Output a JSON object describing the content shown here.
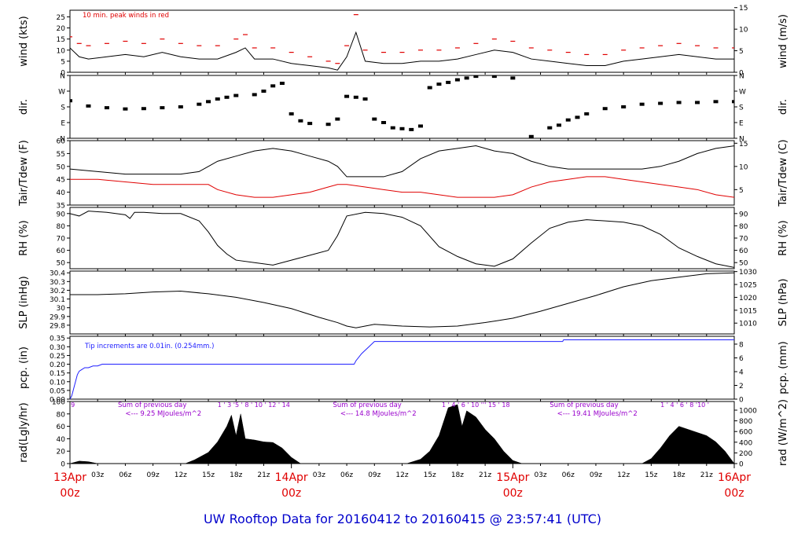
{
  "title": "UW Rooftop Data for 20160412  to  20160415 @ 23:57:41  (UTC)",
  "colors": {
    "red": "#e00000",
    "blue": "#2020ff",
    "purple": "#9900cc",
    "navy": "#0000cc",
    "black": "#000000"
  },
  "time_axis": {
    "range_hours": [
      0,
      72
    ],
    "minor_labels": [
      {
        "h": 3,
        "label": "03z"
      },
      {
        "h": 6,
        "label": "06z"
      },
      {
        "h": 9,
        "label": "09z"
      },
      {
        "h": 12,
        "label": "12z"
      },
      {
        "h": 15,
        "label": "15z"
      },
      {
        "h": 18,
        "label": "18z"
      },
      {
        "h": 21,
        "label": "21z"
      },
      {
        "h": 27,
        "label": "03z"
      },
      {
        "h": 30,
        "label": "06z"
      },
      {
        "h": 33,
        "label": "09z"
      },
      {
        "h": 36,
        "label": "12z"
      },
      {
        "h": 39,
        "label": "15z"
      },
      {
        "h": 42,
        "label": "18z"
      },
      {
        "h": 45,
        "label": "21z"
      },
      {
        "h": 51,
        "label": "03z"
      },
      {
        "h": 54,
        "label": "06z"
      },
      {
        "h": 57,
        "label": "09z"
      },
      {
        "h": 60,
        "label": "12z"
      },
      {
        "h": 63,
        "label": "15z"
      },
      {
        "h": 66,
        "label": "18z"
      },
      {
        "h": 69,
        "label": "21z"
      }
    ],
    "day_labels": [
      {
        "h": 0,
        "day": "13Apr",
        "hour": "00z"
      },
      {
        "h": 24,
        "day": "14Apr",
        "hour": "00z"
      },
      {
        "h": 48,
        "day": "15Apr",
        "hour": "00z"
      },
      {
        "h": 72,
        "day": "16Apr",
        "hour": "00z"
      }
    ]
  },
  "chart_data": [
    {
      "type": "line",
      "ylabel": "wind (kts)",
      "ylabel_right": "wind (m/s)",
      "ylim": [
        0,
        28
      ],
      "yticks": [
        0,
        5,
        10,
        15,
        20,
        25
      ],
      "right_ylim": [
        0,
        14.4
      ],
      "right_ticks": [
        0,
        5,
        10,
        15
      ],
      "annotation": "10 min. peak winds in red",
      "series": [
        {
          "color": "black",
          "x": [
            0,
            1,
            2,
            4,
            6,
            8,
            10,
            12,
            14,
            16,
            18,
            19,
            20,
            22,
            24,
            26,
            28,
            29,
            30,
            31,
            32,
            34,
            36,
            38,
            40,
            42,
            44,
            46,
            48,
            50,
            52,
            54,
            56,
            58,
            60,
            62,
            64,
            66,
            68,
            70,
            72
          ],
          "y": [
            11,
            7,
            6,
            7,
            8,
            7,
            9,
            7,
            6,
            6,
            9,
            11,
            6,
            6,
            4,
            3,
            2,
            1,
            7,
            18,
            5,
            4,
            4,
            5,
            5,
            6,
            8,
            10,
            9,
            6,
            5,
            4,
            3,
            3,
            5,
            6,
            7,
            8,
            7,
            6,
            6
          ]
        },
        {
          "color": "red",
          "x": [
            0,
            1,
            2,
            4,
            6,
            8,
            10,
            12,
            14,
            16,
            18,
            19,
            20,
            22,
            24,
            26,
            28,
            29,
            30,
            31,
            32,
            34,
            36,
            38,
            40,
            42,
            44,
            46,
            48,
            50,
            52,
            54,
            56,
            58,
            60,
            62,
            64,
            66,
            68,
            70,
            72
          ],
          "y": [
            16,
            13,
            12,
            13,
            14,
            13,
            15,
            13,
            12,
            12,
            15,
            17,
            11,
            11,
            9,
            7,
            5,
            4,
            12,
            26,
            10,
            9,
            9,
            10,
            10,
            11,
            13,
            15,
            14,
            11,
            10,
            9,
            8,
            8,
            10,
            11,
            12,
            13,
            12,
            11,
            11
          ]
        }
      ]
    },
    {
      "type": "scatter",
      "ylabel": "dir.",
      "ylabel_right": "dir.",
      "ylim": [
        0,
        360
      ],
      "yticks": [
        0,
        90,
        180,
        270,
        360
      ],
      "ytick_labels": [
        "N",
        "E",
        "S",
        "W",
        "N"
      ],
      "series": [
        {
          "color": "black",
          "x": [
            0,
            2,
            4,
            6,
            8,
            10,
            12,
            14,
            15,
            16,
            17,
            18,
            20,
            21,
            22,
            23,
            24,
            25,
            26,
            28,
            29,
            30,
            31,
            32,
            33,
            34,
            35,
            36,
            37,
            38,
            39,
            40,
            41,
            42,
            43,
            44,
            46,
            48,
            50,
            52,
            53,
            54,
            55,
            56,
            58,
            60,
            62,
            64,
            66,
            68,
            70,
            72
          ],
          "y": [
            215,
            185,
            175,
            168,
            170,
            175,
            180,
            195,
            210,
            225,
            235,
            245,
            250,
            270,
            300,
            315,
            140,
            100,
            85,
            80,
            110,
            240,
            235,
            225,
            110,
            90,
            60,
            55,
            50,
            70,
            290,
            310,
            320,
            335,
            345,
            355,
            355,
            345,
            10,
            60,
            75,
            105,
            120,
            140,
            170,
            180,
            195,
            200,
            205,
            205,
            210,
            210
          ]
        }
      ]
    },
    {
      "type": "line",
      "ylabel": "Tair/Tdew (F)",
      "ylabel_right": "Tair/Tdew (C)",
      "ylim": [
        35,
        60
      ],
      "yticks": [
        35,
        40,
        45,
        50,
        55,
        60
      ],
      "right_ylim": [
        1.67,
        15.56
      ],
      "right_ticks": [
        5,
        10,
        15
      ],
      "series": [
        {
          "color": "black",
          "x": [
            0,
            3,
            6,
            9,
            12,
            14,
            15,
            16,
            18,
            20,
            22,
            24,
            26,
            28,
            29,
            30,
            32,
            34,
            36,
            38,
            40,
            42,
            44,
            46,
            48,
            50,
            52,
            54,
            56,
            58,
            60,
            62,
            64,
            66,
            68,
            70,
            72
          ],
          "y": [
            49,
            48,
            47,
            47,
            47,
            48,
            50,
            52,
            54,
            56,
            57,
            56,
            54,
            52,
            50,
            46,
            46,
            46,
            48,
            53,
            56,
            57,
            58,
            56,
            55,
            52,
            50,
            49,
            49,
            49,
            49,
            49,
            50,
            52,
            55,
            57,
            58
          ]
        },
        {
          "color": "red",
          "x": [
            0,
            3,
            6,
            9,
            12,
            14,
            15,
            16,
            18,
            20,
            22,
            24,
            26,
            28,
            29,
            30,
            32,
            34,
            36,
            38,
            40,
            42,
            44,
            46,
            48,
            50,
            52,
            54,
            56,
            58,
            60,
            62,
            64,
            66,
            68,
            70,
            72
          ],
          "y": [
            45,
            45,
            44,
            43,
            43,
            43,
            43,
            41,
            39,
            38,
            38,
            39,
            40,
            42,
            43,
            43,
            42,
            41,
            40,
            40,
            39,
            38,
            38,
            38,
            39,
            42,
            44,
            45,
            46,
            46,
            45,
            44,
            43,
            42,
            41,
            39,
            38
          ]
        }
      ]
    },
    {
      "type": "line",
      "ylabel": "RH (%)",
      "ylabel_right": "RH (%)",
      "ylim": [
        45,
        95
      ],
      "yticks": [
        50,
        60,
        70,
        80,
        90
      ],
      "series": [
        {
          "color": "black",
          "x": [
            0,
            1,
            2,
            4,
            6,
            6.5,
            7,
            8,
            10,
            12,
            14,
            15,
            16,
            17,
            18,
            20,
            22,
            24,
            26,
            28,
            29,
            30,
            32,
            34,
            36,
            38,
            40,
            42,
            44,
            46,
            48,
            50,
            52,
            54,
            56,
            58,
            60,
            62,
            64,
            66,
            68,
            70,
            72
          ],
          "y": [
            90,
            88,
            92,
            91,
            89,
            86,
            91,
            91,
            90,
            90,
            84,
            75,
            64,
            57,
            52,
            50,
            48,
            52,
            56,
            60,
            72,
            88,
            91,
            90,
            87,
            80,
            63,
            55,
            49,
            47,
            53,
            66,
            78,
            83,
            85,
            84,
            83,
            80,
            73,
            62,
            55,
            49,
            46
          ]
        }
      ]
    },
    {
      "type": "line",
      "ylabel": "SLP (inHg)",
      "ylabel_right": "SLP (hPa)",
      "ylim": [
        29.7,
        30.42
      ],
      "yticks": [
        29.8,
        29.9,
        30.0,
        30.1,
        30.2,
        30.3,
        30.4
      ],
      "right_ylim": [
        1005.8,
        1030.2
      ],
      "right_ticks": [
        1010,
        1015,
        1020,
        1025,
        1030
      ],
      "series": [
        {
          "color": "black",
          "x": [
            0,
            3,
            6,
            9,
            12,
            15,
            18,
            21,
            24,
            27,
            29,
            30,
            31,
            33,
            36,
            39,
            42,
            45,
            48,
            51,
            54,
            57,
            60,
            63,
            66,
            69,
            72
          ],
          "y": [
            30.15,
            30.15,
            30.16,
            30.18,
            30.19,
            30.16,
            30.12,
            30.06,
            29.99,
            29.89,
            29.83,
            29.79,
            29.77,
            29.81,
            29.79,
            29.78,
            29.79,
            29.83,
            29.88,
            29.96,
            30.05,
            30.14,
            30.24,
            30.31,
            30.35,
            30.39,
            30.4
          ]
        }
      ]
    },
    {
      "type": "line",
      "ylabel": "pcp. (in)",
      "ylabel_right": "pcp. (mm)",
      "ylim": [
        0,
        0.36
      ],
      "yticks": [
        0,
        0.05,
        0.1,
        0.15,
        0.2,
        0.25,
        0.3,
        0.35
      ],
      "ytick_labels": [
        "0.00",
        "0.05",
        "0.10",
        "0.15",
        "0.20",
        "0.25",
        "0.30",
        "0.35"
      ],
      "right_ylim": [
        0,
        9.14
      ],
      "right_ticks": [
        0,
        2,
        4,
        6,
        8
      ],
      "annotation": "Tip increments are 0.01in. (0.254mm.)",
      "series": [
        {
          "color": "blue",
          "x": [
            0,
            0.2,
            0.4,
            0.6,
            0.8,
            1.0,
            1.3,
            1.6,
            2.0,
            2.5,
            3.0,
            3.5,
            4.0,
            30.8,
            31.0,
            31.3,
            31.6,
            32.0,
            32.4,
            32.8,
            33.0,
            53.4,
            53.5,
            72
          ],
          "y": [
            0,
            0.02,
            0.06,
            0.1,
            0.14,
            0.16,
            0.17,
            0.18,
            0.18,
            0.19,
            0.19,
            0.2,
            0.2,
            0.2,
            0.22,
            0.24,
            0.26,
            0.28,
            0.3,
            0.32,
            0.33,
            0.33,
            0.34,
            0.34
          ]
        }
      ]
    },
    {
      "type": "area",
      "ylabel": "rad(Lgly/hr)",
      "ylabel_right": "rad (W/m^2)",
      "ylim": [
        0,
        100
      ],
      "yticks": [
        0,
        20,
        40,
        60,
        80,
        100
      ],
      "right_ylim": [
        0,
        1162
      ],
      "right_ticks": [
        0,
        200,
        400,
        600,
        800,
        1000
      ],
      "series": [
        {
          "color": "black",
          "x": [
            0,
            1,
            2,
            3,
            12.5,
            13.5,
            15,
            16,
            17,
            17.5,
            18,
            18.5,
            19,
            20,
            21,
            22,
            23,
            24,
            25,
            36.5,
            38,
            39,
            40,
            41,
            42,
            42.5,
            43,
            44,
            45,
            46,
            47,
            48,
            49,
            62,
            63,
            64,
            65,
            66,
            67,
            68,
            69,
            70,
            71,
            72
          ],
          "y": [
            0,
            4,
            3,
            0,
            0,
            6,
            18,
            35,
            60,
            78,
            45,
            80,
            40,
            38,
            35,
            34,
            25,
            10,
            0,
            0,
            7,
            20,
            45,
            90,
            95,
            60,
            85,
            75,
            55,
            40,
            20,
            5,
            0,
            0,
            8,
            25,
            45,
            60,
            55,
            50,
            45,
            35,
            20,
            0
          ]
        }
      ]
    }
  ],
  "rad_notes": [
    {
      "h": 0.1,
      "text": "9"
    },
    {
      "h": 16.0,
      "text": "1 ' 3 '5 ' 8 ' 10 ' 12 ' 14"
    },
    {
      "h": 40.3,
      "text": "1 ' 4 ' 6 ' 10 ''' 15 ' 18"
    },
    {
      "h": 64.0,
      "text": "1 ' 4 ' 6 ' 8 '10 '"
    },
    {
      "h": 5.2,
      "text": "Sum of previous day"
    },
    {
      "h": 6.0,
      "text": "<--- 9.25 MJoules/m^2"
    },
    {
      "h": 28.5,
      "text": "Sum of previous day"
    },
    {
      "h": 29.3,
      "text": "<--- 14.8 MJoules/m^2"
    },
    {
      "h": 52.0,
      "text": "Sum of previous day"
    },
    {
      "h": 52.8,
      "text": "<--- 19.41 MJoules/m^2"
    }
  ]
}
